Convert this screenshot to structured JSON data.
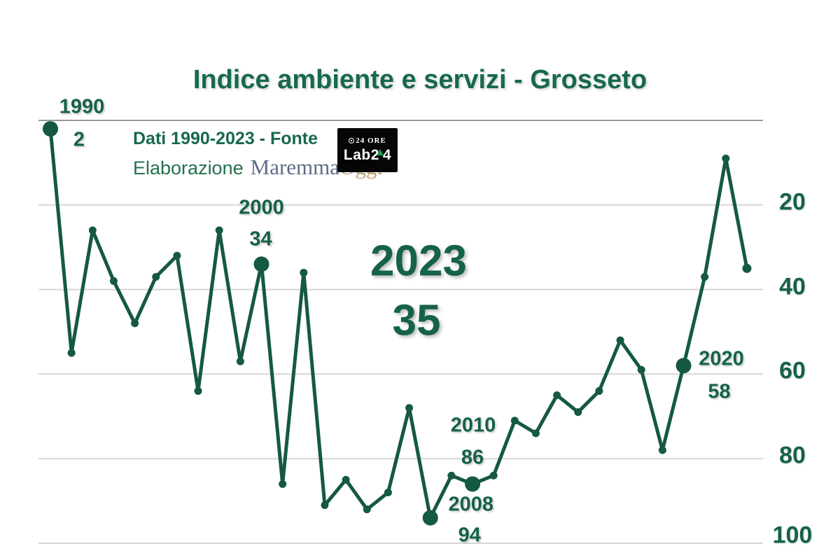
{
  "title": "Indice ambiente e servizi - Grosseto",
  "source": {
    "line1": "Dati 1990-2023 - Fonte",
    "line2_prefix": "Elaborazione",
    "brand": "MaremmaOggi",
    "logo": {
      "masthead": "24 ORE",
      "name": "Lab24"
    }
  },
  "colors": {
    "line": "#155941",
    "label": "#156247",
    "title": "#17694B",
    "grid": "#D6D6D6",
    "axis_top": "#999999",
    "brand_maremma": "#5C6E86",
    "brand_oggi": "#C2A278",
    "logo_bg": "#060606",
    "logo_accent": "#18A14E"
  },
  "chart_data": {
    "type": "line",
    "title": "Indice ambiente e servizi - Grosseto",
    "xlabel": "",
    "ylabel": "",
    "x": [
      1990,
      1991,
      1992,
      1993,
      1994,
      1995,
      1996,
      1997,
      1998,
      1999,
      2000,
      2001,
      2002,
      2003,
      2004,
      2005,
      2006,
      2007,
      2008,
      2009,
      2010,
      2011,
      2012,
      2013,
      2014,
      2015,
      2016,
      2017,
      2018,
      2019,
      2020,
      2021,
      2022,
      2023
    ],
    "values": [
      2,
      55,
      26,
      38,
      48,
      37,
      32,
      64,
      26,
      57,
      34,
      86,
      36,
      91,
      85,
      92,
      88,
      68,
      94,
      84,
      86,
      84,
      71,
      74,
      65,
      69,
      64,
      52,
      59,
      78,
      58,
      37,
      9,
      35
    ],
    "y_axis": {
      "inverted": true,
      "range": [
        0,
        100
      ],
      "ticks": [
        20,
        40,
        60,
        80,
        100
      ]
    },
    "grid": true,
    "legend": false,
    "annotations": [
      {
        "year": 1990,
        "value": 2,
        "year_label": "1990",
        "value_label": "2",
        "dot": "large",
        "style": "small"
      },
      {
        "year": 2000,
        "value": 34,
        "year_label": "2000",
        "value_label": "34",
        "dot": "large",
        "style": "small"
      },
      {
        "year": 2008,
        "value": 94,
        "year_label": "2008",
        "value_label": "94",
        "dot": "large",
        "style": "small"
      },
      {
        "year": 2010,
        "value": 86,
        "year_label": "2010",
        "value_label": "86",
        "dot": "large",
        "style": "small"
      },
      {
        "year": 2020,
        "value": 58,
        "year_label": "2020",
        "value_label": "58",
        "dot": "large",
        "style": "small"
      },
      {
        "year": 2023,
        "value": 35,
        "year_label": "2023",
        "value_label": "35",
        "dot": "normal",
        "style": "big-center"
      }
    ]
  }
}
